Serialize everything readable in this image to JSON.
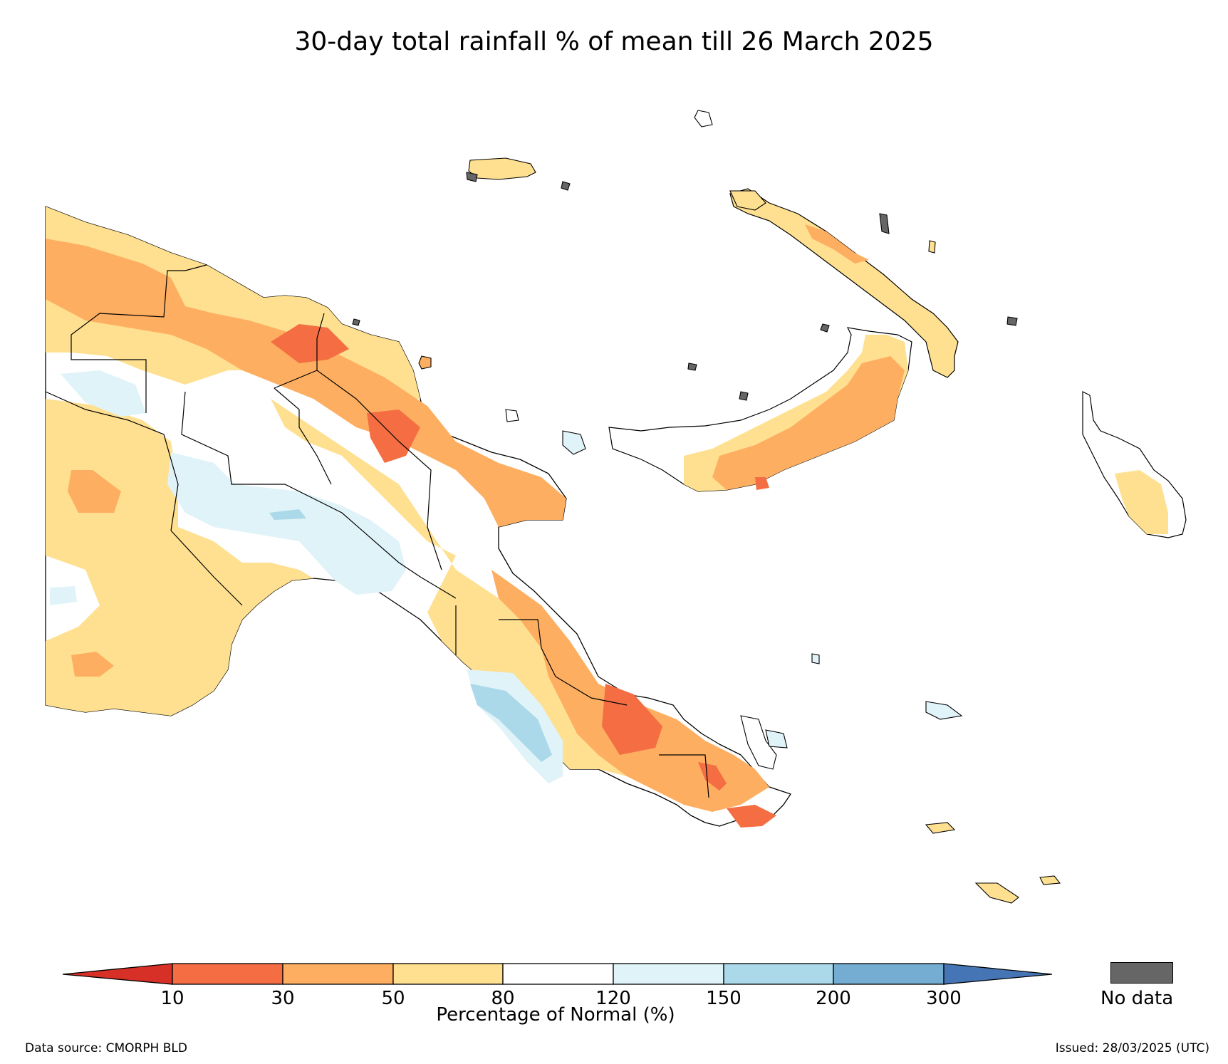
{
  "title": "30-day total rainfall % of mean till 26 March 2025",
  "legend": {
    "label": "Percentage of Normal (%)",
    "ticks": [
      "10",
      "30",
      "50",
      "80",
      "120",
      "150",
      "200",
      "300"
    ],
    "categories": [
      {
        "range": "<10",
        "color": "#d73027"
      },
      {
        "range": "10-30",
        "color": "#f46d43"
      },
      {
        "range": "30-50",
        "color": "#fdae61"
      },
      {
        "range": "50-80",
        "color": "#fee090"
      },
      {
        "range": "80-120",
        "color": "#ffffff"
      },
      {
        "range": "120-150",
        "color": "#e0f3f8"
      },
      {
        "range": "150-200",
        "color": "#abd9e9"
      },
      {
        "range": "200-300",
        "color": "#74add1"
      },
      {
        "range": ">300",
        "color": "#4575b4"
      }
    ],
    "no_data_label": "No data",
    "no_data_color": "#666666"
  },
  "footer": {
    "source": "Data source: CMORPH BLD",
    "issued": "Issued: 28/03/2025 (UTC)"
  }
}
